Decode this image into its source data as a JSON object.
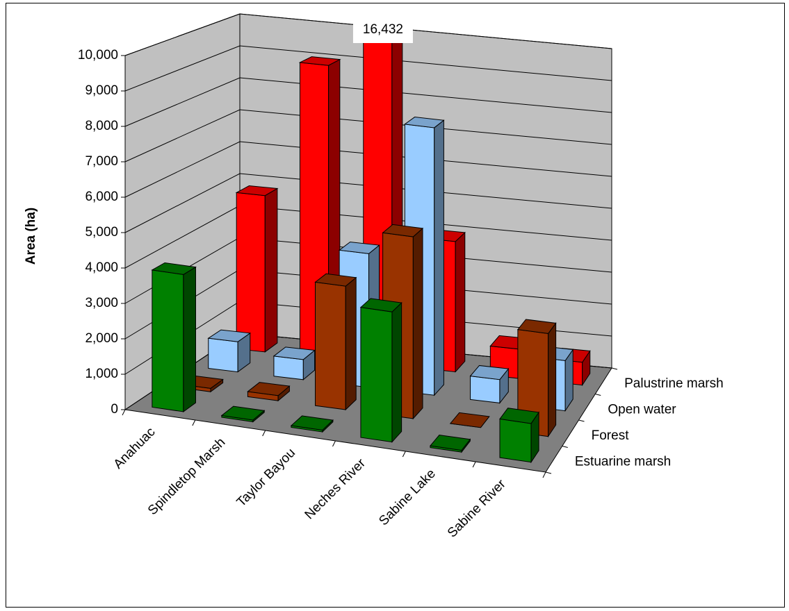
{
  "chart_data": {
    "type": "bar3d",
    "y_axis_label": "Area (ha)",
    "categories": [
      "Anahuac",
      "Spindletop Marsh",
      "Taylor Bayou",
      "Neches River",
      "Sabine Lake",
      "Sabine River"
    ],
    "series": [
      {
        "name": "Estuarine marsh",
        "color": "#008000",
        "values": [
          3900,
          50,
          50,
          3700,
          50,
          1100
        ]
      },
      {
        "name": "Forest",
        "color": "#993300",
        "values": [
          100,
          150,
          3600,
          5300,
          0,
          3000
        ]
      },
      {
        "name": "Open water",
        "color": "#99ccff",
        "values": [
          900,
          600,
          4000,
          8000,
          700,
          1500
        ]
      },
      {
        "name": "Palustrine marsh",
        "color": "#ff0000",
        "values": [
          4800,
          9000,
          16432,
          4000,
          900,
          700
        ],
        "value_labels": [
          null,
          null,
          "16,432",
          null,
          null,
          null
        ]
      }
    ],
    "ylim": [
      0,
      10000
    ],
    "yticks": [
      0,
      {
        "value": 1000,
        "label": "1,000"
      },
      {
        "value": 2000,
        "label": "2,000"
      },
      {
        "value": 3000,
        "label": "3,000"
      },
      {
        "value": 4000,
        "label": "4,000"
      },
      {
        "value": 5000,
        "label": "5,000"
      },
      {
        "value": 6000,
        "label": "6,000"
      },
      {
        "value": 7000,
        "label": "7,000"
      },
      {
        "value": 8000,
        "label": "8,000"
      },
      {
        "value": 9000,
        "label": "9,000"
      },
      {
        "value": 10000,
        "label": "10,000"
      }
    ],
    "grid": true,
    "legend": "right"
  }
}
